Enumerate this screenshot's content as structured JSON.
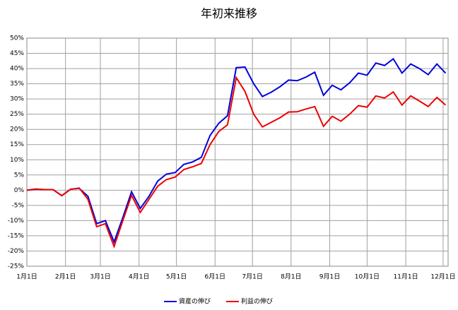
{
  "chart_data": {
    "type": "line",
    "title": "年初来推移",
    "x": [
      0,
      7,
      14,
      21,
      28,
      35,
      42,
      49,
      56,
      63,
      70,
      77,
      84,
      91,
      98,
      105,
      112,
      119,
      126,
      133,
      140,
      147,
      154,
      161,
      168,
      175,
      182,
      189,
      196,
      203,
      210,
      217,
      224,
      231,
      238,
      245,
      252,
      259,
      266,
      273,
      280,
      287,
      294,
      301,
      308,
      315,
      322,
      329,
      336
    ],
    "series": [
      {
        "name": "資産の伸び",
        "color": "#0000dd",
        "values": [
          0,
          0.3,
          0.2,
          0.2,
          -1.8,
          0.3,
          0.6,
          -2,
          -11,
          -10,
          -17,
          -9,
          -0.5,
          -6,
          -2,
          3,
          5.3,
          5.8,
          8.5,
          9.3,
          10.8,
          18,
          22,
          24.5,
          40.3,
          40.5,
          35,
          30.8,
          32.2,
          34,
          36.2,
          36,
          37.2,
          38.8,
          31.2,
          34.5,
          33,
          35.3,
          38.5,
          37.8,
          41.8,
          41,
          43.2,
          38.5,
          41.5,
          40,
          38,
          41.5,
          38.5
        ]
      },
      {
        "name": "利益の伸び",
        "color": "#ee0000",
        "values": [
          0,
          0.4,
          0.2,
          0.2,
          -1.8,
          0.3,
          0.7,
          -3,
          -12,
          -11,
          -18.5,
          -10,
          -1.7,
          -7.3,
          -3,
          1.3,
          3.5,
          4.3,
          6.8,
          7.7,
          8.8,
          15,
          19.3,
          21.5,
          37,
          32.5,
          25,
          20.8,
          22.3,
          23.8,
          25.7,
          25.8,
          26.7,
          27.5,
          21,
          24.3,
          22.7,
          25,
          27.8,
          27.3,
          31,
          30.3,
          32.3,
          28,
          31,
          29.3,
          27.5,
          30.5,
          28
        ]
      }
    ],
    "xlim": [
      0,
      338
    ],
    "xticks": [
      {
        "value": 0,
        "label": "1月1日"
      },
      {
        "value": 31,
        "label": "2月1日"
      },
      {
        "value": 59,
        "label": "3月1日"
      },
      {
        "value": 90,
        "label": "4月1日"
      },
      {
        "value": 120,
        "label": "5月1日"
      },
      {
        "value": 151,
        "label": "6月1日"
      },
      {
        "value": 181,
        "label": "7月1日"
      },
      {
        "value": 212,
        "label": "8月1日"
      },
      {
        "value": 243,
        "label": "9月1日"
      },
      {
        "value": 273,
        "label": "10月1日"
      },
      {
        "value": 304,
        "label": "11月1日"
      },
      {
        "value": 334,
        "label": "12月1日"
      }
    ],
    "ylim": [
      -25,
      50
    ],
    "yticks": [
      {
        "value": -25,
        "label": "-25%"
      },
      {
        "value": -20,
        "label": "-20%"
      },
      {
        "value": -15,
        "label": "-15%"
      },
      {
        "value": -10,
        "label": "-10%"
      },
      {
        "value": -5,
        "label": "-5%"
      },
      {
        "value": 0,
        "label": "0%"
      },
      {
        "value": 5,
        "label": "5%"
      },
      {
        "value": 10,
        "label": "10%"
      },
      {
        "value": 15,
        "label": "15%"
      },
      {
        "value": 20,
        "label": "20%"
      },
      {
        "value": 25,
        "label": "25%"
      },
      {
        "value": 30,
        "label": "30%"
      },
      {
        "value": 35,
        "label": "35%"
      },
      {
        "value": 40,
        "label": "40%"
      },
      {
        "value": 45,
        "label": "45%"
      },
      {
        "value": 50,
        "label": "50%"
      }
    ],
    "grid": true,
    "legend": "bottom"
  }
}
